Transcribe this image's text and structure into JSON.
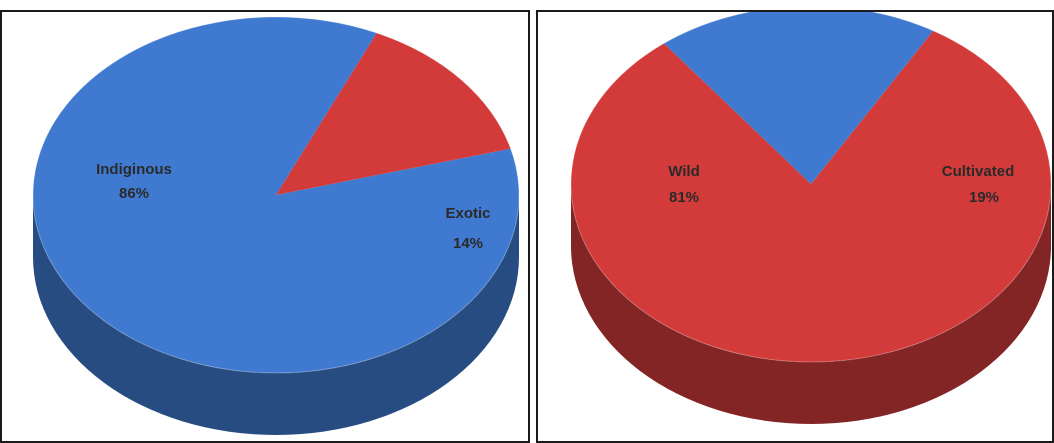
{
  "chart_data": [
    {
      "type": "pie",
      "style": "3d",
      "categories": [
        "Indiginous",
        "Exotic"
      ],
      "values": [
        86,
        14
      ],
      "labels": [
        {
          "name": "Indiginous",
          "value": "86%"
        },
        {
          "name": "Exotic",
          "value": "14%"
        }
      ],
      "colors": [
        "#3f7ad0",
        "#d33b3b"
      ],
      "legend": "none"
    },
    {
      "type": "pie",
      "style": "3d",
      "categories": [
        "Wild",
        "Cultivated"
      ],
      "values": [
        81,
        19
      ],
      "labels": [
        {
          "name": "Wild",
          "value": "81%"
        },
        {
          "name": "Cultivated",
          "value": "19%"
        }
      ],
      "colors": [
        "#d33b3b",
        "#3f7ad0"
      ],
      "legend": "none"
    }
  ]
}
